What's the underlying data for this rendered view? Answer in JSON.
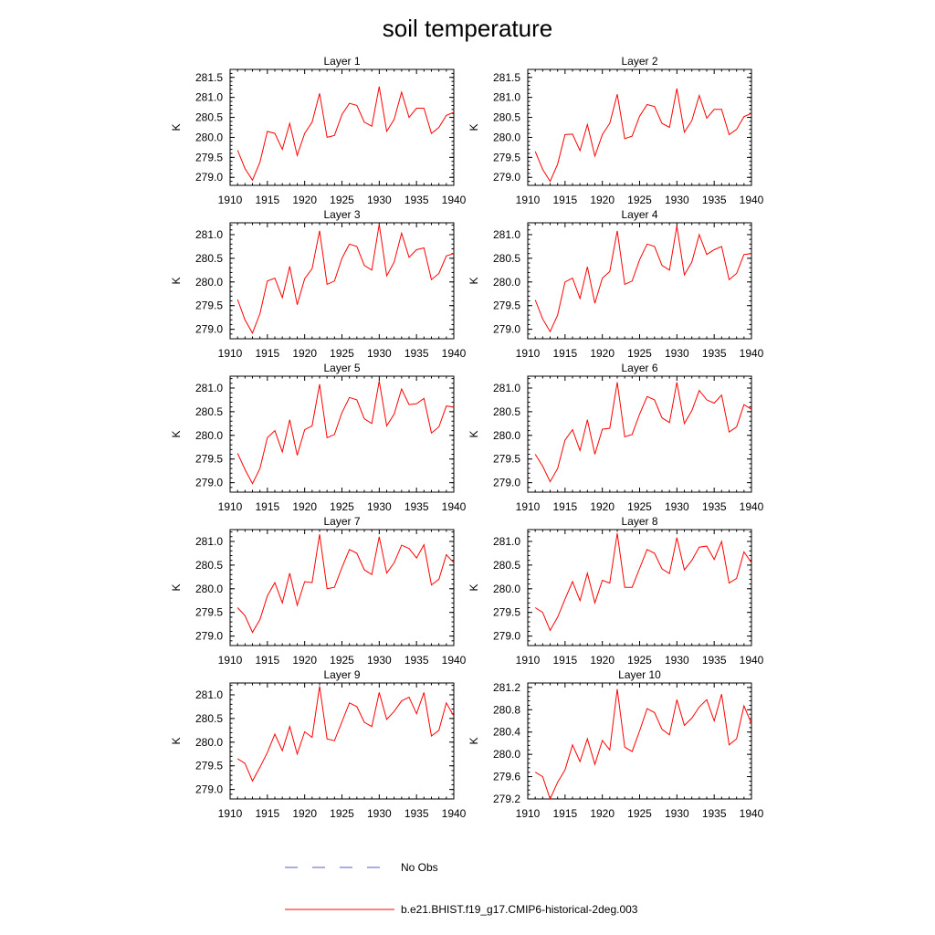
{
  "title": "soil temperature",
  "legend": {
    "placement": "bottom",
    "entries": [
      {
        "label": "No Obs",
        "color": "#5b5bc8",
        "style": "dashed"
      },
      {
        "label": "b.e21.BHIST.f19_g17.CMIP6-historical-2deg.003",
        "color": "#ff0000",
        "style": "solid"
      }
    ]
  },
  "chart_data": {
    "type": "line",
    "ylabel": "K",
    "x": [
      1911,
      1912,
      1913,
      1914,
      1915,
      1916,
      1917,
      1918,
      1919,
      1920,
      1921,
      1922,
      1923,
      1924,
      1925,
      1926,
      1927,
      1928,
      1929,
      1930,
      1931,
      1932,
      1933,
      1934,
      1935,
      1936,
      1937,
      1938,
      1939,
      1940
    ],
    "xlim": [
      1910,
      1940
    ],
    "xticks": [
      "1910",
      "1915",
      "1920",
      "1925",
      "1930",
      "1935",
      "1940"
    ],
    "series_color": "#ff0000",
    "panels": [
      {
        "title": "Layer 1",
        "ylim": [
          278.8,
          281.7
        ],
        "yticks": [
          "279.0",
          "279.5",
          "280.0",
          "280.5",
          "281.0",
          "281.5"
        ],
        "values": [
          279.68,
          279.22,
          278.93,
          279.38,
          280.15,
          280.1,
          279.7,
          280.35,
          279.55,
          280.1,
          280.38,
          281.1,
          280.0,
          280.05,
          280.57,
          280.85,
          280.8,
          280.38,
          280.28,
          281.27,
          280.15,
          280.45,
          281.13,
          280.5,
          280.73,
          280.73,
          280.1,
          280.25,
          280.55,
          280.63
        ]
      },
      {
        "title": "Layer 2",
        "ylim": [
          278.8,
          281.7
        ],
        "yticks": [
          "279.0",
          "279.5",
          "280.0",
          "280.5",
          "281.0",
          "281.5"
        ],
        "values": [
          279.65,
          279.2,
          278.9,
          279.33,
          280.07,
          280.08,
          279.67,
          280.32,
          279.53,
          280.07,
          280.35,
          281.08,
          279.97,
          280.03,
          280.53,
          280.82,
          280.77,
          280.35,
          280.25,
          281.22,
          280.13,
          280.42,
          281.05,
          280.48,
          280.7,
          280.7,
          280.07,
          280.2,
          280.52,
          280.6
        ]
      },
      {
        "title": "Layer 3",
        "ylim": [
          278.8,
          281.25
        ],
        "yticks": [
          "279.0",
          "279.5",
          "280.0",
          "280.5",
          "281.0"
        ],
        "values": [
          279.63,
          279.2,
          278.92,
          279.33,
          280.02,
          280.08,
          279.67,
          280.33,
          279.52,
          280.07,
          280.28,
          281.08,
          279.95,
          280.02,
          280.5,
          280.8,
          280.75,
          280.35,
          280.25,
          281.22,
          280.13,
          280.42,
          281.03,
          280.52,
          280.68,
          280.72,
          280.05,
          280.18,
          280.55,
          280.6
        ]
      },
      {
        "title": "Layer 4",
        "ylim": [
          278.8,
          281.25
        ],
        "yticks": [
          "279.0",
          "279.5",
          "280.0",
          "280.5",
          "281.0"
        ],
        "values": [
          279.62,
          279.22,
          278.95,
          279.3,
          280.0,
          280.08,
          279.65,
          280.32,
          279.55,
          280.08,
          280.22,
          281.08,
          279.95,
          280.02,
          280.47,
          280.8,
          280.75,
          280.35,
          280.25,
          281.18,
          280.15,
          280.42,
          281.0,
          280.58,
          280.68,
          280.75,
          280.05,
          280.18,
          280.58,
          280.6
        ]
      },
      {
        "title": "Layer 5",
        "ylim": [
          278.8,
          281.25
        ],
        "yticks": [
          "279.0",
          "279.5",
          "280.0",
          "280.5",
          "281.0"
        ],
        "values": [
          279.62,
          279.28,
          278.98,
          279.3,
          279.95,
          280.1,
          279.65,
          280.33,
          279.58,
          280.12,
          280.2,
          281.08,
          279.95,
          280.02,
          280.48,
          280.8,
          280.75,
          280.35,
          280.25,
          281.15,
          280.2,
          280.45,
          280.98,
          280.65,
          280.67,
          280.78,
          280.05,
          280.18,
          280.62,
          280.6
        ]
      },
      {
        "title": "Layer 6",
        "ylim": [
          278.8,
          281.25
        ],
        "yticks": [
          "279.0",
          "279.5",
          "280.0",
          "280.5",
          "281.0"
        ],
        "values": [
          279.6,
          279.35,
          279.02,
          279.3,
          279.9,
          280.12,
          279.68,
          280.33,
          279.6,
          280.13,
          280.15,
          281.12,
          279.97,
          280.02,
          280.45,
          280.82,
          280.75,
          280.37,
          280.27,
          281.12,
          280.25,
          280.52,
          280.95,
          280.75,
          280.68,
          280.85,
          280.07,
          280.18,
          280.65,
          280.55
        ]
      },
      {
        "title": "Layer 7",
        "ylim": [
          278.8,
          281.25
        ],
        "yticks": [
          "279.0",
          "279.5",
          "280.0",
          "280.5",
          "281.0"
        ],
        "values": [
          279.6,
          279.43,
          279.08,
          279.35,
          279.85,
          280.13,
          279.7,
          280.33,
          279.65,
          280.15,
          280.13,
          281.15,
          280.0,
          280.03,
          280.45,
          280.83,
          280.75,
          280.4,
          280.3,
          281.1,
          280.33,
          280.55,
          280.92,
          280.85,
          280.65,
          280.93,
          280.08,
          280.2,
          280.72,
          280.55
        ]
      },
      {
        "title": "Layer 8",
        "ylim": [
          278.8,
          281.25
        ],
        "yticks": [
          "279.0",
          "279.5",
          "280.0",
          "280.5",
          "281.0"
        ],
        "values": [
          279.6,
          279.5,
          279.12,
          279.4,
          279.78,
          280.15,
          279.75,
          280.33,
          279.7,
          280.18,
          280.12,
          281.17,
          280.03,
          280.03,
          280.43,
          280.83,
          280.75,
          280.42,
          280.32,
          281.08,
          280.4,
          280.6,
          280.88,
          280.9,
          280.62,
          281.0,
          280.12,
          280.22,
          280.78,
          280.55
        ]
      },
      {
        "title": "Layer 9",
        "ylim": [
          278.8,
          281.25
        ],
        "yticks": [
          "279.0",
          "279.5",
          "280.0",
          "280.5",
          "281.0"
        ],
        "values": [
          279.65,
          279.55,
          279.18,
          279.47,
          279.78,
          280.17,
          279.82,
          280.33,
          279.75,
          280.22,
          280.1,
          281.18,
          280.07,
          280.03,
          280.43,
          280.83,
          280.75,
          280.42,
          280.33,
          281.05,
          280.48,
          280.65,
          280.87,
          280.95,
          280.6,
          281.05,
          280.13,
          280.25,
          280.83,
          280.55
        ]
      },
      {
        "title": "Layer 10",
        "ylim": [
          279.2,
          281.28
        ],
        "yticks": [
          "279.2",
          "279.6",
          "280.0",
          "280.4",
          "280.8",
          "281.2"
        ],
        "values": [
          279.68,
          279.6,
          279.2,
          279.5,
          279.72,
          280.17,
          279.87,
          280.28,
          279.82,
          280.25,
          280.08,
          281.17,
          280.13,
          280.05,
          280.42,
          280.82,
          280.75,
          280.45,
          280.35,
          280.98,
          280.52,
          280.65,
          280.85,
          280.98,
          280.6,
          281.08,
          280.17,
          280.28,
          280.87,
          280.55
        ]
      }
    ]
  }
}
